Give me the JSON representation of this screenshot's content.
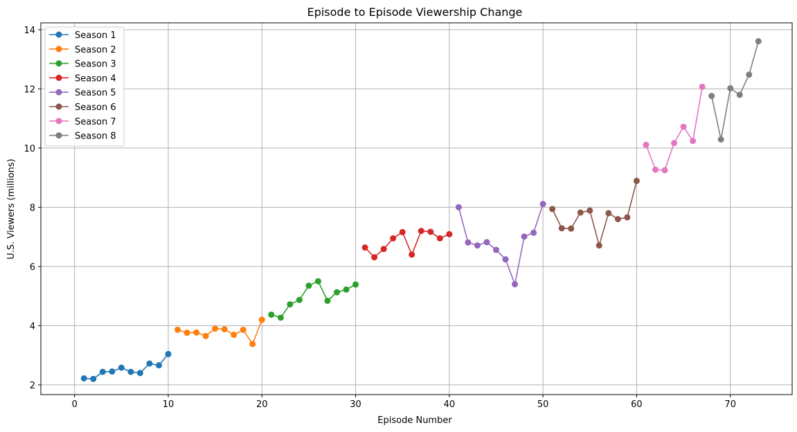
{
  "chart_data": {
    "type": "line",
    "title": "Episode to Episode Viewership Change",
    "xlabel": "Episode Number",
    "ylabel": "U.S. Viewers (millions)",
    "xlim": [
      -3.6,
      76.6
    ],
    "ylim": [
      1.67,
      14.23
    ],
    "xticks": [
      0,
      10,
      20,
      30,
      40,
      50,
      60,
      70
    ],
    "yticks": [
      2,
      4,
      6,
      8,
      10,
      12,
      14
    ],
    "grid": true,
    "legend_position": "upper-left",
    "series": [
      {
        "name": "Season 1",
        "color": "#1f77b4",
        "x": [
          1,
          2,
          3,
          4,
          5,
          6,
          7,
          8,
          9,
          10
        ],
        "values": [
          2.22,
          2.2,
          2.44,
          2.45,
          2.58,
          2.44,
          2.4,
          2.72,
          2.66,
          3.04
        ]
      },
      {
        "name": "Season 2",
        "color": "#ff7f0e",
        "x": [
          11,
          12,
          13,
          14,
          15,
          16,
          17,
          18,
          19,
          20
        ],
        "values": [
          3.86,
          3.76,
          3.77,
          3.65,
          3.9,
          3.88,
          3.69,
          3.86,
          3.38,
          4.2
        ]
      },
      {
        "name": "Season 3",
        "color": "#2ca02c",
        "x": [
          21,
          22,
          23,
          24,
          25,
          26,
          27,
          28,
          29,
          30
        ],
        "values": [
          4.37,
          4.27,
          4.72,
          4.87,
          5.35,
          5.5,
          4.84,
          5.13,
          5.22,
          5.39
        ]
      },
      {
        "name": "Season 4",
        "color": "#d62728",
        "x": [
          31,
          32,
          33,
          34,
          35,
          36,
          37,
          38,
          39,
          40
        ],
        "values": [
          6.64,
          6.31,
          6.59,
          6.95,
          7.16,
          6.4,
          7.2,
          7.17,
          6.95,
          7.09
        ]
      },
      {
        "name": "Season 5",
        "color": "#9467bd",
        "x": [
          41,
          42,
          43,
          44,
          45,
          46,
          47,
          48,
          49,
          50
        ],
        "values": [
          8.0,
          6.81,
          6.71,
          6.82,
          6.56,
          6.24,
          5.4,
          7.01,
          7.14,
          8.11
        ]
      },
      {
        "name": "Season 6",
        "color": "#8c564b",
        "x": [
          51,
          52,
          53,
          54,
          55,
          56,
          57,
          58,
          59,
          60
        ],
        "values": [
          7.94,
          7.29,
          7.28,
          7.82,
          7.89,
          6.71,
          7.8,
          7.6,
          7.66,
          8.89
        ]
      },
      {
        "name": "Season 7",
        "color": "#e377c2",
        "x": [
          61,
          62,
          63,
          64,
          65,
          66,
          67
        ],
        "values": [
          10.11,
          9.27,
          9.25,
          10.17,
          10.72,
          10.24,
          12.07
        ]
      },
      {
        "name": "Season 8",
        "color": "#7f7f7f",
        "x": [
          68,
          69,
          70,
          71,
          72,
          73
        ],
        "values": [
          11.76,
          10.29,
          12.02,
          11.8,
          12.48,
          13.61
        ]
      }
    ]
  }
}
